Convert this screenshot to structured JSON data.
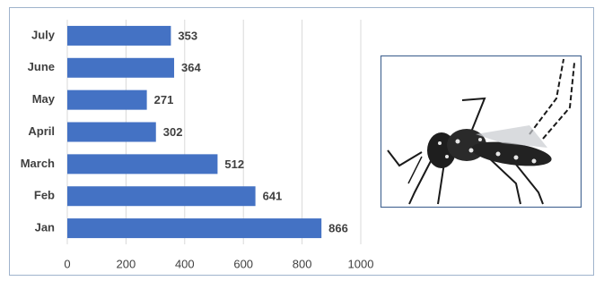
{
  "chart_data": {
    "type": "bar",
    "orientation": "horizontal",
    "categories": [
      "Jan",
      "Feb",
      "March",
      "April",
      "May",
      "June",
      "July"
    ],
    "values": [
      866,
      641,
      512,
      302,
      271,
      364,
      353
    ],
    "color": "#4472c4",
    "xlim": [
      0,
      1000
    ],
    "xticks": [
      0,
      200,
      400,
      600,
      800,
      1000
    ],
    "grid": true
  }
}
